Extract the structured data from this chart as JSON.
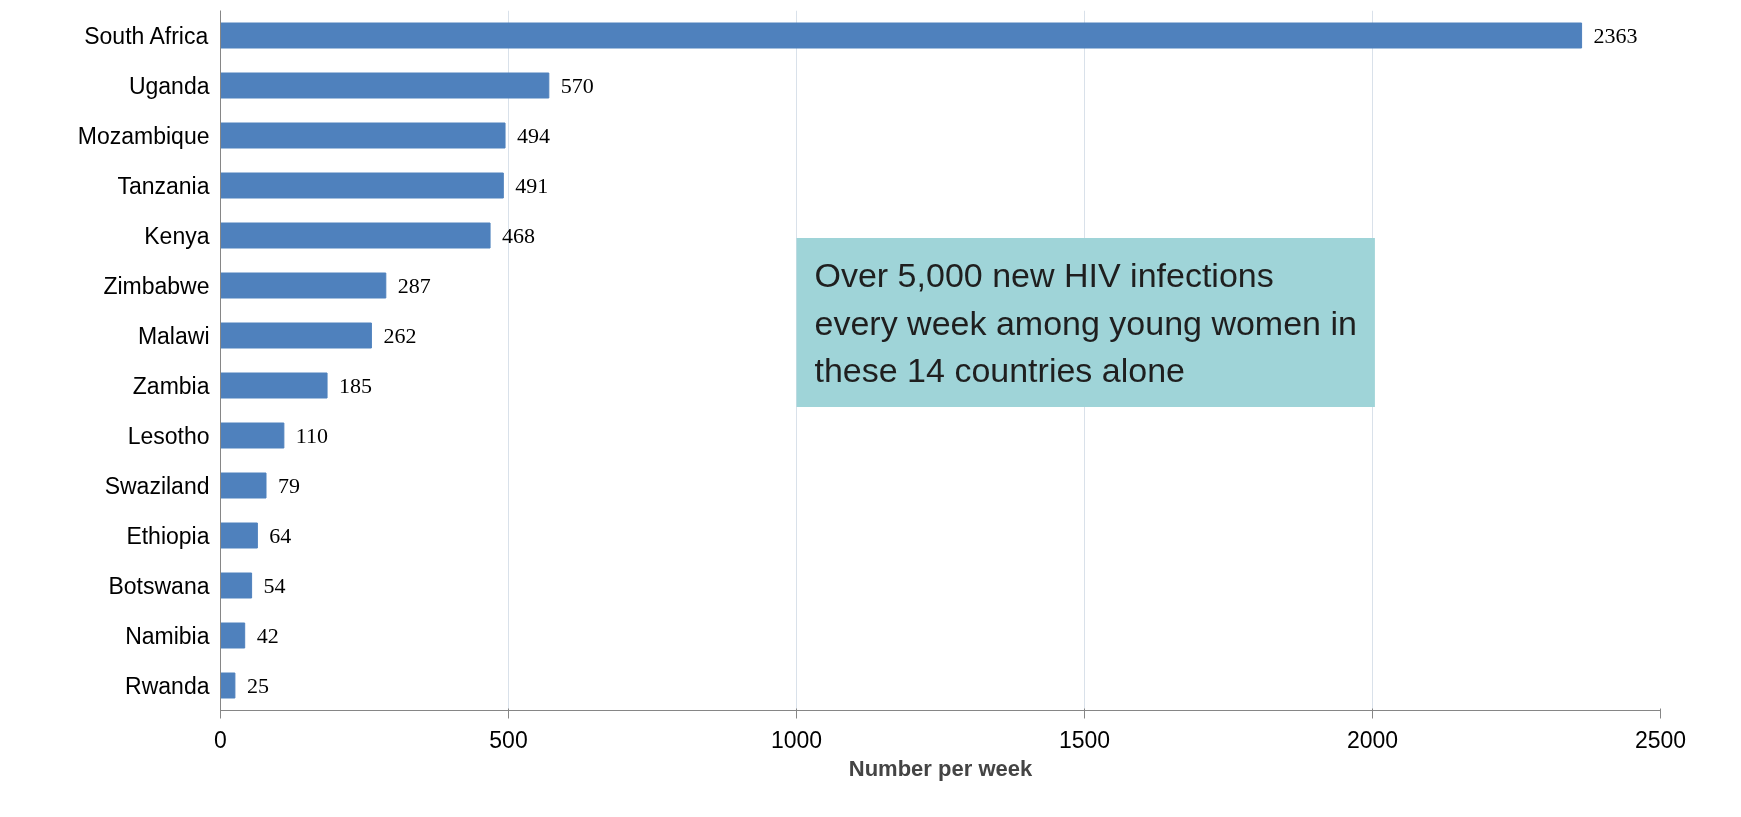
{
  "chart_data": {
    "type": "bar",
    "orientation": "horizontal",
    "xlabel": "Number per week",
    "categories": [
      "South Africa",
      "Uganda",
      "Mozambique",
      "Tanzania",
      "Kenya",
      "Zimbabwe",
      "Malawi",
      "Zambia",
      "Lesotho",
      "Swaziland",
      "Ethiopia",
      "Botswana",
      "Namibia",
      "Rwanda"
    ],
    "values": [
      2363,
      570,
      494,
      491,
      468,
      287,
      262,
      185,
      110,
      79,
      64,
      54,
      42,
      25
    ],
    "color": "#4f81bd",
    "xlim": [
      0,
      2500
    ],
    "xticks": [
      0,
      500,
      1000,
      1500,
      2000,
      2500
    ],
    "grid": "x",
    "data_labels": true,
    "annotations": [
      "Over 5,000 new HIV infections every week among young women in these 14 countries alone"
    ]
  }
}
